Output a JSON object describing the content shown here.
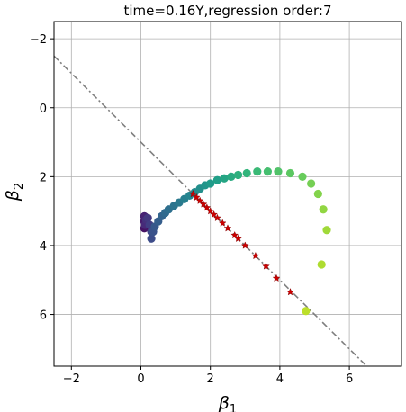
{
  "chart_data": {
    "type": "scatter",
    "title": "time=0.16Y,regression order:7",
    "xlabel": "β",
    "xlabel_sub": "1",
    "ylabel": "β",
    "ylabel_sub": "2",
    "xlim": [
      -2.5,
      7.5
    ],
    "ylim": [
      7.5,
      -2.5
    ],
    "y_inverted": true,
    "xticks": [
      -2,
      0,
      2,
      4,
      6
    ],
    "yticks": [
      -2,
      0,
      2,
      4,
      6
    ],
    "xtick_labels": [
      "−2",
      "0",
      "2",
      "4",
      "6"
    ],
    "ytick_labels": [
      "−2",
      "0",
      "2",
      "4",
      "6"
    ],
    "grid": true,
    "reference_line": {
      "style": "dash-dot",
      "color": "#7f7f7f",
      "x": [
        -2.5,
        6.5
      ],
      "y": [
        -1.5,
        7.5
      ]
    },
    "red_stars": {
      "color": "#cc0000",
      "x": [
        1.5,
        1.6,
        1.7,
        1.8,
        1.9,
        2.0,
        2.1,
        2.2,
        2.35,
        2.5,
        2.7,
        2.8,
        3.0,
        3.3,
        3.6,
        3.9,
        4.3
      ],
      "y": [
        2.5,
        2.6,
        2.7,
        2.8,
        2.9,
        3.0,
        3.1,
        3.2,
        3.35,
        3.5,
        3.7,
        3.8,
        4.0,
        4.3,
        4.6,
        4.95,
        5.35
      ]
    },
    "trajectory": {
      "colormap": "viridis",
      "x": [
        0.1,
        0.1,
        0.1,
        0.12,
        0.15,
        0.2,
        0.25,
        0.3,
        0.3,
        0.35,
        0.4,
        0.5,
        0.6,
        0.7,
        0.8,
        0.95,
        1.1,
        1.25,
        1.4,
        1.55,
        1.7,
        1.85,
        2.0,
        2.2,
        2.4,
        2.6,
        2.8,
        3.05,
        3.35,
        3.65,
        3.95,
        4.3,
        4.65,
        4.9,
        5.1,
        5.25,
        5.35,
        5.2,
        4.75
      ],
      "y": [
        3.5,
        3.3,
        3.15,
        3.4,
        3.25,
        3.2,
        3.4,
        3.6,
        3.8,
        3.6,
        3.45,
        3.3,
        3.15,
        3.05,
        2.95,
        2.85,
        2.75,
        2.65,
        2.55,
        2.45,
        2.35,
        2.25,
        2.2,
        2.1,
        2.05,
        2.0,
        1.95,
        1.9,
        1.85,
        1.85,
        1.85,
        1.9,
        2.0,
        2.2,
        2.5,
        2.95,
        3.55,
        4.55,
        5.9
      ]
    }
  }
}
